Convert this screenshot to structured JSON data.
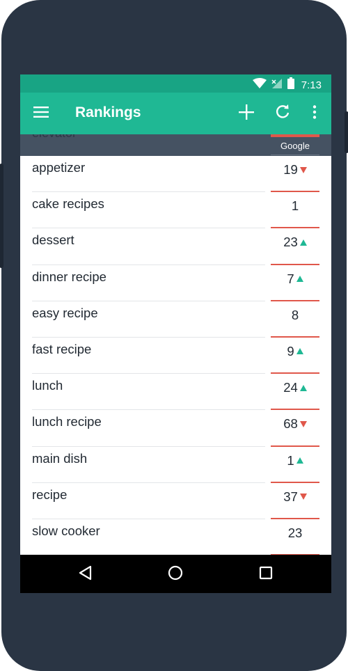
{
  "status_bar": {
    "time": "7:13"
  },
  "toolbar": {
    "title": "Rankings",
    "menu_icon": "hamburger-menu-icon",
    "add_icon": "plus-icon",
    "refresh_icon": "refresh-icon",
    "more_icon": "more-vert-icon"
  },
  "subheader": {
    "partial_keyword": "elevator",
    "engine": "Google"
  },
  "rankings": [
    {
      "keyword": "appetizer",
      "rank": "19",
      "trend": "down"
    },
    {
      "keyword": "cake recipes",
      "rank": "1",
      "trend": "none"
    },
    {
      "keyword": "dessert",
      "rank": "23",
      "trend": "up"
    },
    {
      "keyword": "dinner recipe",
      "rank": "7",
      "trend": "up"
    },
    {
      "keyword": "easy recipe",
      "rank": "8",
      "trend": "none"
    },
    {
      "keyword": "fast recipe",
      "rank": "9",
      "trend": "up"
    },
    {
      "keyword": "lunch",
      "rank": "24",
      "trend": "up"
    },
    {
      "keyword": "lunch recipe",
      "rank": "68",
      "trend": "down"
    },
    {
      "keyword": "main dish",
      "rank": "1",
      "trend": "up"
    },
    {
      "keyword": "recipe",
      "rank": "37",
      "trend": "down"
    },
    {
      "keyword": "slow cooker",
      "rank": "23",
      "trend": "none"
    }
  ],
  "colors": {
    "status_bar": "#18a484",
    "toolbar": "#1fb894",
    "subheader": "#455262",
    "trend_up": "#1fb894",
    "trend_down": "#e0574a",
    "rank_underline": "#e0574a",
    "phone_body": "#2a3544"
  },
  "nav": {
    "back_icon": "back-triangle-icon",
    "home_icon": "home-circle-icon",
    "recents_icon": "recents-square-icon"
  }
}
